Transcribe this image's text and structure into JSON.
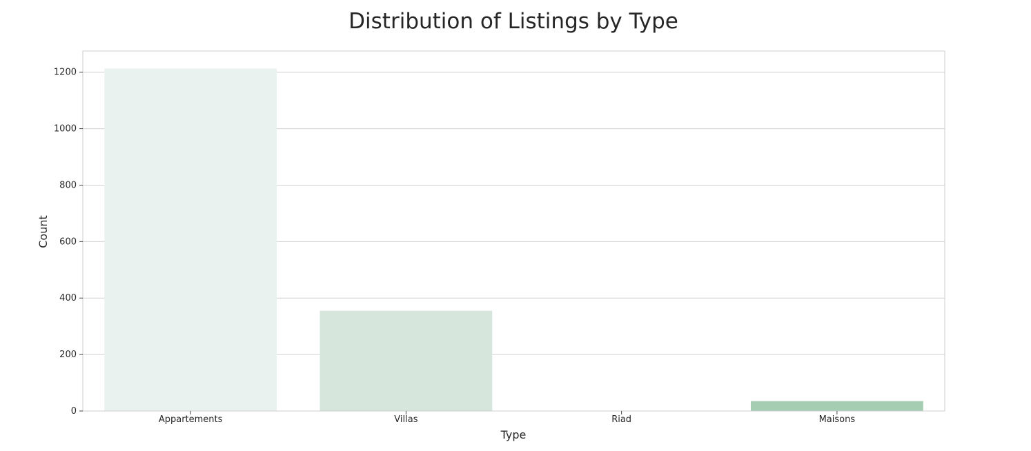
{
  "chart_data": {
    "type": "bar",
    "title": "Distribution of Listings by Type",
    "xlabel": "Type",
    "ylabel": "Count",
    "categories": [
      "Appartements",
      "Villas",
      "Riad",
      "Maisons"
    ],
    "values": [
      1213,
      355,
      1,
      35
    ],
    "ylim": [
      0,
      1275
    ],
    "yticks": [
      0,
      200,
      400,
      600,
      800,
      1000,
      1200
    ],
    "grid": true,
    "colors": [
      "#e9f2ee",
      "#d6e6dc",
      "#c0dccb",
      "#a4cdb2"
    ],
    "background": "#ffffff",
    "grid_color": "#d0d0d0",
    "frame_color": "#cccccc"
  }
}
